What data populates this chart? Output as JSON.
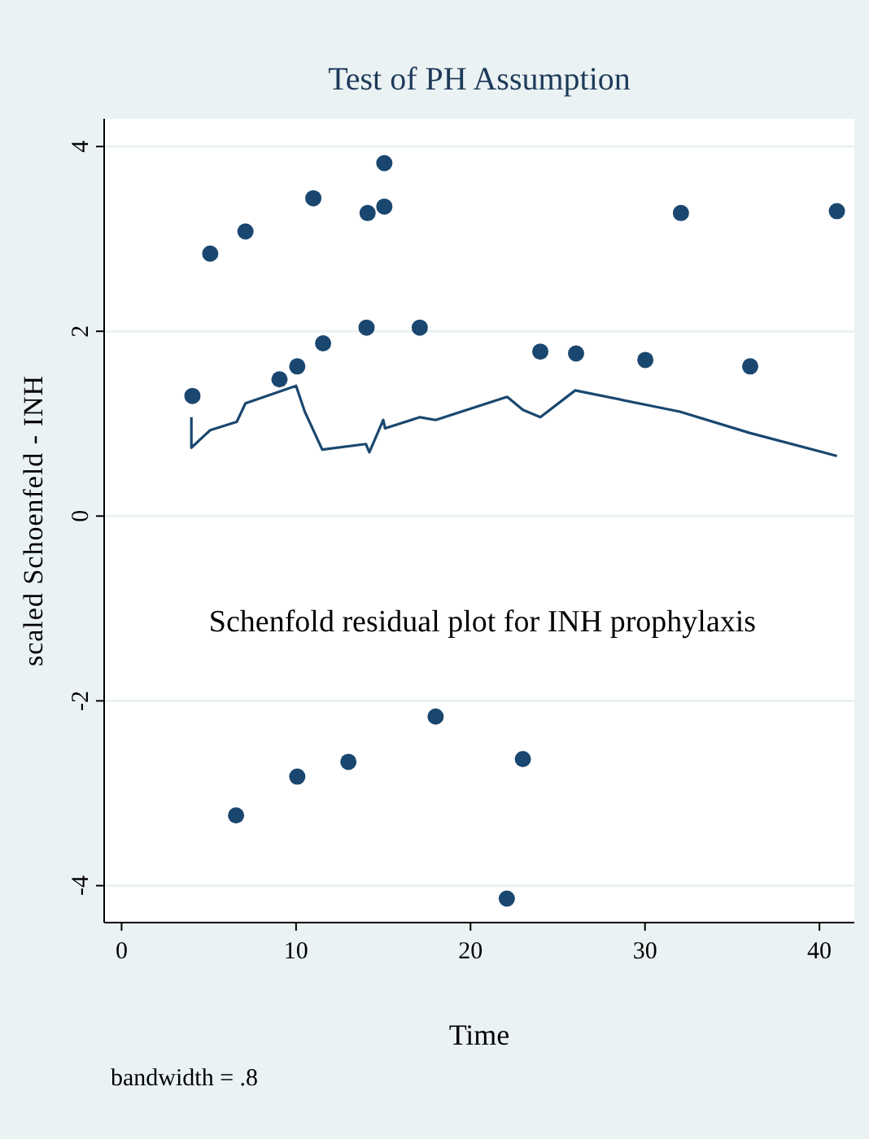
{
  "chart_data": {
    "type": "scatter",
    "title": "Test of PH Assumption",
    "xlabel": "Time",
    "ylabel": "scaled Schoenfeld - INH",
    "annotations": [
      "Schenfold residual plot for INH prophylaxis",
      "bandwidth = .8"
    ],
    "series": [
      {
        "color": "#1a476f",
        "marker": "circle",
        "x": [
          4.06,
          5.08,
          7.1,
          9.05,
          10.07,
          10.99,
          11.55,
          14.04,
          14.1,
          15.06,
          15.06,
          17.09,
          24.0,
          26.05,
          30.02,
          32.06,
          36.03,
          41.0,
          6.56,
          10.07,
          13.0,
          18.0,
          23.0,
          22.08
        ],
        "values": [
          1.3,
          2.84,
          3.08,
          1.48,
          1.62,
          3.44,
          1.87,
          2.04,
          3.28,
          3.35,
          3.82,
          2.04,
          1.78,
          1.76,
          1.69,
          3.28,
          1.62,
          3.3,
          -3.24,
          -2.82,
          -2.66,
          -2.17,
          -2.63,
          -4.14
        ]
      },
      {
        "type": "line",
        "color": "#1a476f",
        "x": [
          4.0,
          4.0,
          5.08,
          6.6,
          7.1,
          10.0,
          10.5,
          11.5,
          14.0,
          14.2,
          15.0,
          15.1,
          17.1,
          18.0,
          22.1,
          23.0,
          24.0,
          26.0,
          32.0,
          36.0,
          41.0
        ],
        "values": [
          1.07,
          0.74,
          0.93,
          1.02,
          1.22,
          1.41,
          1.13,
          0.72,
          0.78,
          0.69,
          1.04,
          0.95,
          1.07,
          1.04,
          1.29,
          1.15,
          1.07,
          1.36,
          1.13,
          0.9,
          0.65
        ]
      }
    ],
    "xlim": [
      -1,
      42
    ],
    "xticks": [
      0,
      10,
      20,
      30,
      40
    ],
    "ylim": [
      -4.4,
      4.3
    ],
    "yticks": [
      -4,
      -2,
      0,
      2,
      4
    ],
    "grid": "y"
  }
}
